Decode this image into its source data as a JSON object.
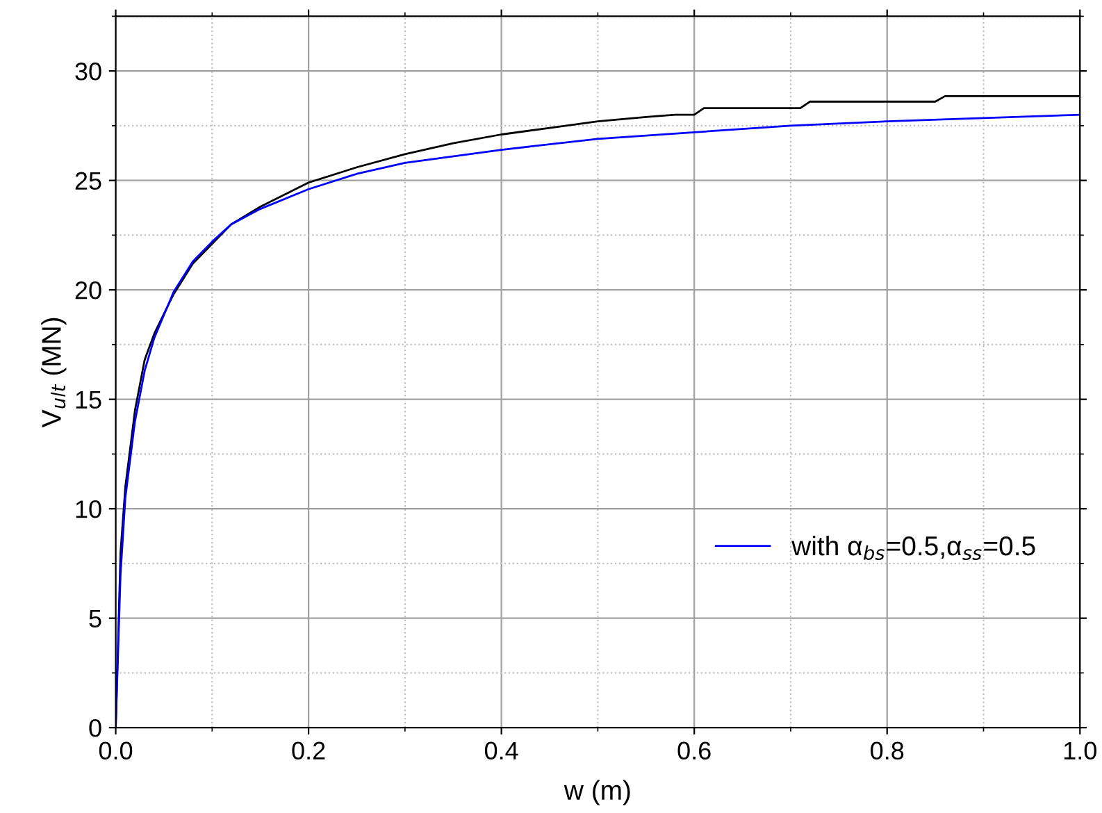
{
  "chart_data": {
    "type": "line",
    "xlabel": "w (m)",
    "ylabel": "V$_{ult}$ (MN)",
    "xlim": [
      0,
      1.0
    ],
    "xticks": [
      {
        "value": 0,
        "label": "0.0"
      },
      {
        "value": 0.2,
        "label": "0.2"
      },
      {
        "value": 0.4,
        "label": "0.4"
      },
      {
        "value": 0.6,
        "label": "0.6"
      },
      {
        "value": 0.8,
        "label": "0.8"
      },
      {
        "value": 1.0,
        "label": "1.0"
      }
    ],
    "ylim": [
      0,
      32.5
    ],
    "yticks": [
      0,
      5,
      10,
      15,
      20,
      25,
      30
    ],
    "grid": true,
    "legend": "bottom right",
    "marker": "none",
    "line_style": "solid",
    "series": [
      {
        "color": "#000000",
        "x": [
          0,
          0.005,
          0.01,
          0.02,
          0.03,
          0.04,
          0.06,
          0.08,
          0.12,
          0.15,
          0.2,
          0.25,
          0.3,
          0.35,
          0.4,
          0.45,
          0.5,
          0.55,
          0.58,
          0.6,
          0.61,
          0.7,
          0.71,
          0.72,
          0.85,
          0.86,
          1.0
        ],
        "values": [
          0,
          8,
          11,
          14.5,
          16.8,
          18,
          19.8,
          21.2,
          23,
          23.8,
          24.9,
          25.6,
          26.2,
          26.7,
          27.1,
          27.4,
          27.7,
          27.9,
          28.0,
          28.0,
          28.3,
          28.3,
          28.3,
          28.6,
          28.6,
          28.85,
          28.85
        ]
      },
      {
        "name": "with α$_{bs}$=0.5,α$_{ss}$=0.5",
        "color": "#0000ff",
        "x": [
          0,
          0.005,
          0.01,
          0.02,
          0.03,
          0.04,
          0.06,
          0.08,
          0.1,
          0.12,
          0.15,
          0.2,
          0.25,
          0.3,
          0.4,
          0.5,
          0.6,
          0.7,
          0.8,
          0.9,
          1.0
        ],
        "values": [
          0,
          7,
          10.5,
          14,
          16.3,
          17.8,
          19.9,
          21.3,
          22.2,
          23.0,
          23.7,
          24.6,
          25.3,
          25.8,
          26.4,
          26.9,
          27.2,
          27.5,
          27.7,
          27.85,
          28.0
        ]
      }
    ]
  }
}
